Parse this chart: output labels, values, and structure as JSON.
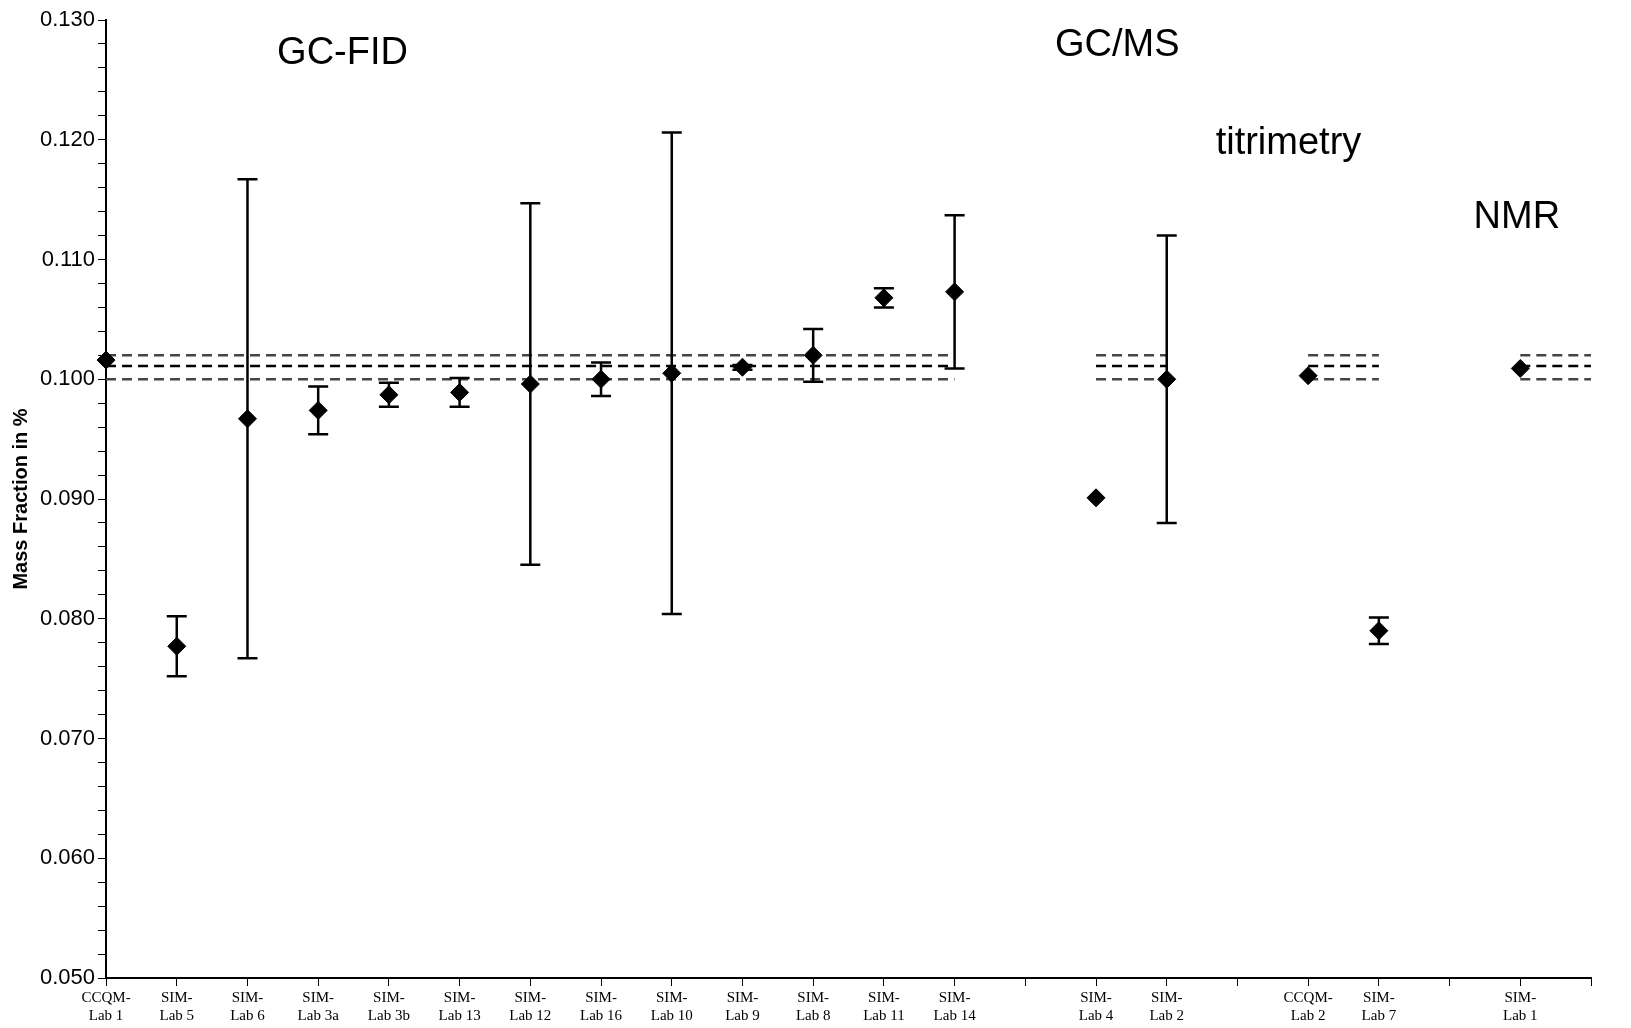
{
  "chart_data": {
    "type": "scatter",
    "ylabel": "Mass Fraction in %",
    "categories": [
      "CCQM-Lab 1",
      "SIM-Lab 5",
      "SIM-Lab 6",
      "SIM-Lab 3a",
      "SIM-Lab 3b",
      "SIM-Lab 13",
      "SIM-Lab 12",
      "SIM-Lab 16",
      "SIM-Lab 10",
      "SIM-Lab 9",
      "SIM-Lab 8",
      "SIM-Lab 11",
      "SIM-Lab 14",
      null,
      "SIM-Lab 4",
      "SIM-Lab 2",
      null,
      "CCQM-Lab 2",
      "SIM-Lab 7",
      null,
      "SIM-Lab 1",
      null
    ],
    "ylim": [
      0.05,
      0.13
    ],
    "yticks": [
      {
        "value": 0.05,
        "label": "0.050"
      },
      {
        "value": 0.052,
        "label": null
      },
      {
        "value": 0.054,
        "label": null
      },
      {
        "value": 0.056,
        "label": null
      },
      {
        "value": 0.058,
        "label": null
      },
      {
        "value": 0.06,
        "label": "0.060"
      },
      {
        "value": 0.062,
        "label": null
      },
      {
        "value": 0.064,
        "label": null
      },
      {
        "value": 0.066,
        "label": null
      },
      {
        "value": 0.068,
        "label": null
      },
      {
        "value": 0.07,
        "label": "0.070"
      },
      {
        "value": 0.072,
        "label": null
      },
      {
        "value": 0.074,
        "label": null
      },
      {
        "value": 0.076,
        "label": null
      },
      {
        "value": 0.078,
        "label": null
      },
      {
        "value": 0.08,
        "label": "0.080"
      },
      {
        "value": 0.082,
        "label": null
      },
      {
        "value": 0.084,
        "label": null
      },
      {
        "value": 0.086,
        "label": null
      },
      {
        "value": 0.088,
        "label": null
      },
      {
        "value": 0.09,
        "label": "0.090"
      },
      {
        "value": 0.092,
        "label": null
      },
      {
        "value": 0.094,
        "label": null
      },
      {
        "value": 0.096,
        "label": null
      },
      {
        "value": 0.098,
        "label": null
      },
      {
        "value": 0.1,
        "label": "0.100"
      },
      {
        "value": 0.102,
        "label": null
      },
      {
        "value": 0.104,
        "label": null
      },
      {
        "value": 0.106,
        "label": null
      },
      {
        "value": 0.108,
        "label": null
      },
      {
        "value": 0.11,
        "label": "0.110"
      },
      {
        "value": 0.112,
        "label": null
      },
      {
        "value": 0.114,
        "label": null
      },
      {
        "value": 0.116,
        "label": null
      },
      {
        "value": 0.118,
        "label": null
      },
      {
        "value": 0.12,
        "label": "0.120"
      },
      {
        "value": 0.122,
        "label": null
      },
      {
        "value": 0.124,
        "label": null
      },
      {
        "value": 0.126,
        "label": null
      },
      {
        "value": 0.128,
        "label": null
      },
      {
        "value": 0.13,
        "label": "0.130"
      }
    ],
    "grid": false,
    "legend": false,
    "annotations": [
      "GC-FID",
      "GC/MS",
      "titrimetry",
      "NMR"
    ],
    "series": [
      {
        "marker": "diamond",
        "color": "#000000",
        "values": [
          0.1016,
          0.0777,
          0.0967,
          0.0974,
          0.0987,
          0.0989,
          0.0996,
          0.1,
          0.1005,
          0.101,
          0.102,
          0.1068,
          0.1073,
          null,
          0.0901,
          0.1,
          null,
          0.1003,
          0.079,
          null,
          0.1009,
          null
        ],
        "errors": [
          null,
          0.0025,
          0.02,
          0.002,
          0.001,
          0.0012,
          0.0151,
          0.0014,
          0.0201,
          0.0002,
          0.0022,
          0.0008,
          0.0064,
          null,
          null,
          0.012,
          null,
          null,
          0.0011,
          null,
          null,
          null
        ]
      },
      {
        "type": "line",
        "line_style": "dashed",
        "color": "#000000",
        "values": [
          0.1011,
          0.1011,
          0.1011,
          0.1011,
          0.1011,
          0.1011,
          0.1011,
          0.1011,
          0.1011,
          0.1011,
          0.1011,
          0.1011,
          0.1011,
          null,
          0.1011,
          0.1011,
          null,
          0.1011,
          0.1011,
          null,
          0.1011,
          0.1011
        ]
      },
      {
        "type": "line",
        "line_style": "dashed",
        "color": "#444444",
        "values": [
          0.102,
          0.102,
          0.102,
          0.102,
          0.102,
          0.102,
          0.102,
          0.102,
          0.102,
          0.102,
          0.102,
          0.102,
          0.102,
          null,
          0.102,
          0.102,
          null,
          0.102,
          0.102,
          null,
          0.102,
          0.102
        ]
      },
      {
        "type": "line",
        "line_style": "dashed",
        "color": "#444444",
        "values": [
          0.1,
          0.1,
          0.1,
          0.1,
          0.1,
          0.1,
          0.1,
          0.1,
          0.1,
          0.1,
          0.1,
          0.1,
          0.1,
          null,
          0.1,
          0.1,
          null,
          0.1,
          0.1,
          null,
          0.1,
          0.1
        ]
      }
    ]
  }
}
